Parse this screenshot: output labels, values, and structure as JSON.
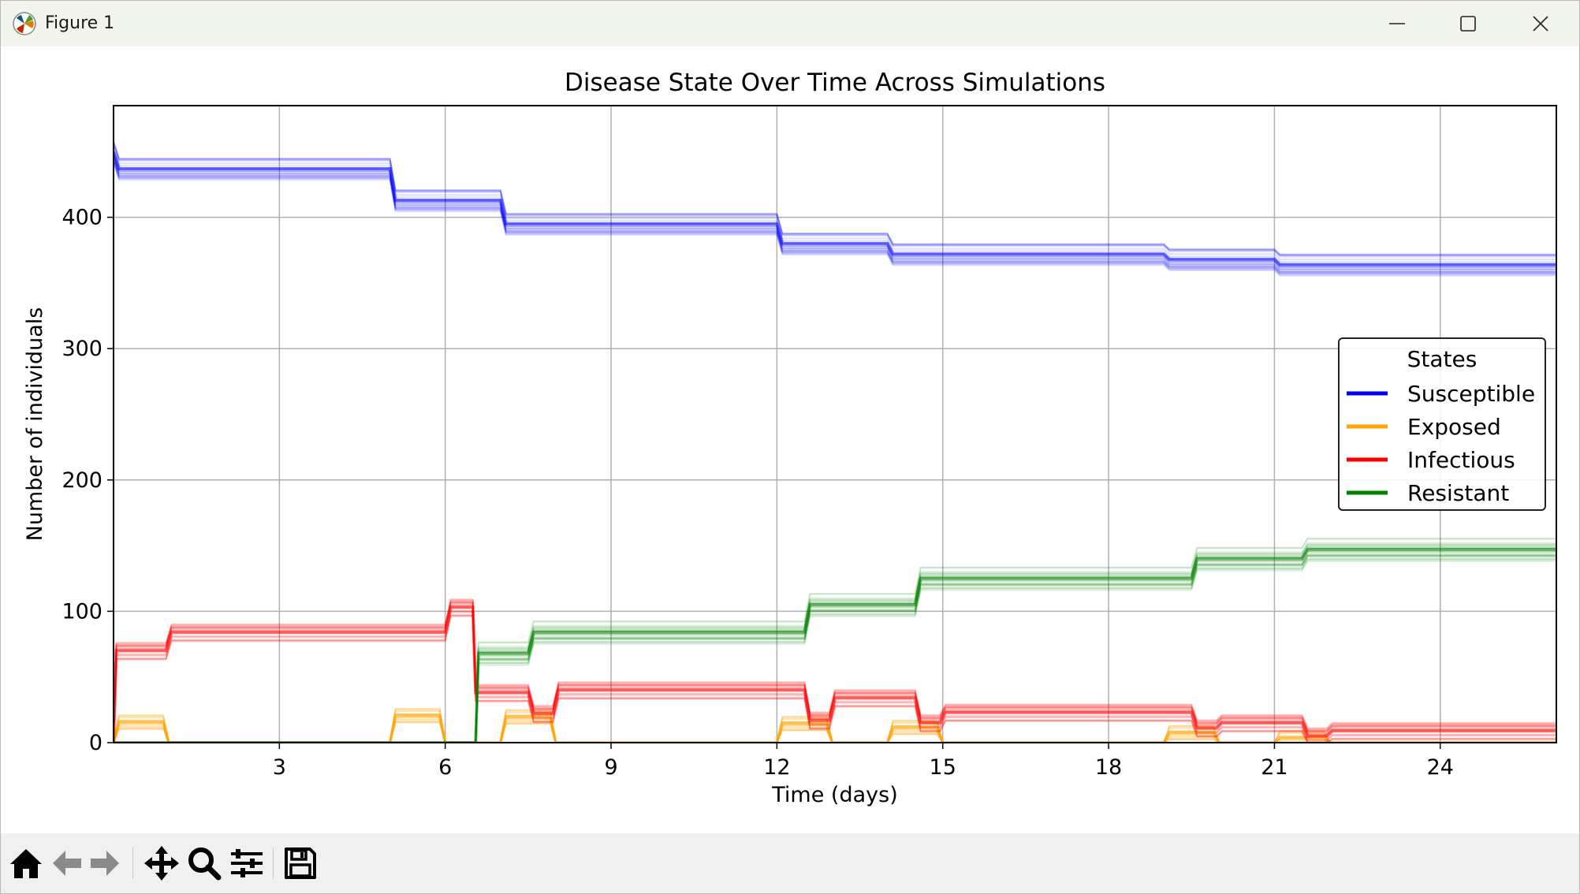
{
  "window": {
    "title": "Figure 1",
    "controls": {
      "minimize": "minimize",
      "maximize": "maximize",
      "close": "close"
    }
  },
  "toolbar": {
    "tools": [
      {
        "name": "home",
        "icon": "home-icon"
      },
      {
        "name": "back",
        "icon": "back-arrow-icon"
      },
      {
        "name": "forward",
        "icon": "forward-arrow-icon"
      },
      {
        "name": "pan",
        "icon": "move-icon"
      },
      {
        "name": "zoom",
        "icon": "magnifier-icon"
      },
      {
        "name": "configure-subplots",
        "icon": "sliders-icon"
      },
      {
        "name": "save",
        "icon": "save-icon"
      }
    ]
  },
  "chart_data": {
    "type": "line",
    "title": "Disease State Over Time Across Simulations",
    "xlabel": "Time (days)",
    "ylabel": "Number of individuals",
    "xlim": [
      0,
      26.1
    ],
    "ylim": [
      0,
      485
    ],
    "xticks": [
      3,
      6,
      9,
      12,
      15,
      18,
      21,
      24
    ],
    "yticks": [
      0,
      100,
      200,
      300,
      400
    ],
    "grid": true,
    "legend": {
      "title": "States",
      "placement": "center-right"
    },
    "note": "Approximate central values; the figure overlays many semi-transparent simulation runs around these step curves.",
    "series": [
      {
        "name": "Susceptible",
        "color": "#0000ff",
        "x": [
          0,
          0.1,
          5.0,
          5.1,
          7.0,
          7.1,
          12.0,
          12.1,
          14.0,
          14.1,
          19.0,
          19.1,
          21.0,
          21.1,
          26.1
        ],
        "y": [
          450,
          437,
          437,
          413,
          413,
          395,
          395,
          380,
          380,
          372,
          372,
          368,
          368,
          364,
          364
        ],
        "spread": 18
      },
      {
        "name": "Exposed",
        "color": "#ffa500",
        "x": [
          0,
          0.1,
          0.9,
          1.0,
          5.0,
          5.1,
          5.9,
          6.0,
          7.0,
          7.1,
          7.9,
          8.0,
          12.0,
          12.1,
          12.9,
          13.0,
          14.0,
          14.1,
          14.9,
          15.0,
          19.0,
          19.1,
          19.9,
          20.0,
          21.0,
          21.1,
          21.9,
          22.0,
          26.1
        ],
        "y": [
          0,
          16,
          16,
          0,
          0,
          21,
          21,
          0,
          0,
          20,
          20,
          0,
          0,
          15,
          15,
          0,
          0,
          12,
          12,
          0,
          0,
          8,
          8,
          0,
          0,
          4,
          4,
          0,
          0
        ],
        "spread": 12
      },
      {
        "name": "Infectious",
        "color": "#ff0000",
        "x": [
          0,
          0.05,
          0.95,
          1.05,
          6.0,
          6.1,
          6.5,
          6.55,
          7.5,
          7.6,
          7.95,
          8.05,
          12.5,
          12.6,
          12.95,
          13.05,
          14.5,
          14.6,
          14.95,
          15.05,
          19.5,
          19.6,
          19.95,
          20.05,
          21.5,
          21.6,
          21.95,
          22.05,
          26.1
        ],
        "y": [
          0,
          70,
          70,
          84,
          84,
          103,
          103,
          38,
          38,
          22,
          22,
          40,
          40,
          17,
          17,
          34,
          34,
          15,
          15,
          23,
          23,
          11,
          11,
          15,
          15,
          5,
          5,
          9,
          9
        ],
        "spread": 14
      },
      {
        "name": "Resistant",
        "color": "#008000",
        "x": [
          0,
          6.55,
          6.6,
          7.5,
          7.6,
          12.5,
          12.6,
          14.5,
          14.6,
          19.5,
          19.6,
          21.5,
          21.6,
          26.1
        ],
        "y": [
          0,
          0,
          68,
          68,
          84,
          84,
          105,
          105,
          125,
          125,
          140,
          140,
          147,
          147
        ],
        "spread": 18
      }
    ]
  }
}
